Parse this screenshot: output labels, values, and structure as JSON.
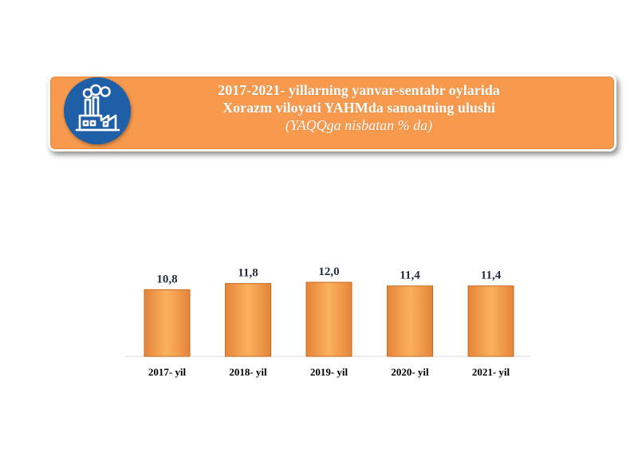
{
  "header": {
    "title_line1": "2017-2021- yillarning yanvar-sentabr oylarida",
    "title_line2": "Xorazm viloyati YAHMda sanoatning ulushi",
    "subtitle": "(YAQQga nisbatan % da)",
    "icon": "factory-icon",
    "banner_color": "#f79a4e",
    "icon_bg_color": "#1f5fa8"
  },
  "chart_data": {
    "type": "bar",
    "title": "2017-2021- yillarning yanvar-sentabr oylarida Xorazm viloyati YAHMda sanoatning ulushi",
    "subtitle": "(YAQQga nisbatan % da)",
    "categories": [
      "2017- yil",
      "2018- yil",
      "2019- yil",
      "2020- yil",
      "2021- yil"
    ],
    "values": [
      10.8,
      11.8,
      12.0,
      11.4,
      11.4
    ],
    "value_labels": [
      "10,8",
      "11,8",
      "12,0",
      "11,4",
      "11,4"
    ],
    "xlabel": "",
    "ylabel": "",
    "ylim": [
      0,
      12.0
    ],
    "grid": false,
    "legend": "none",
    "bar_color": "#f5a04a",
    "bar_edge_color": "#c96a1b",
    "label_color": "#1f2a44"
  }
}
